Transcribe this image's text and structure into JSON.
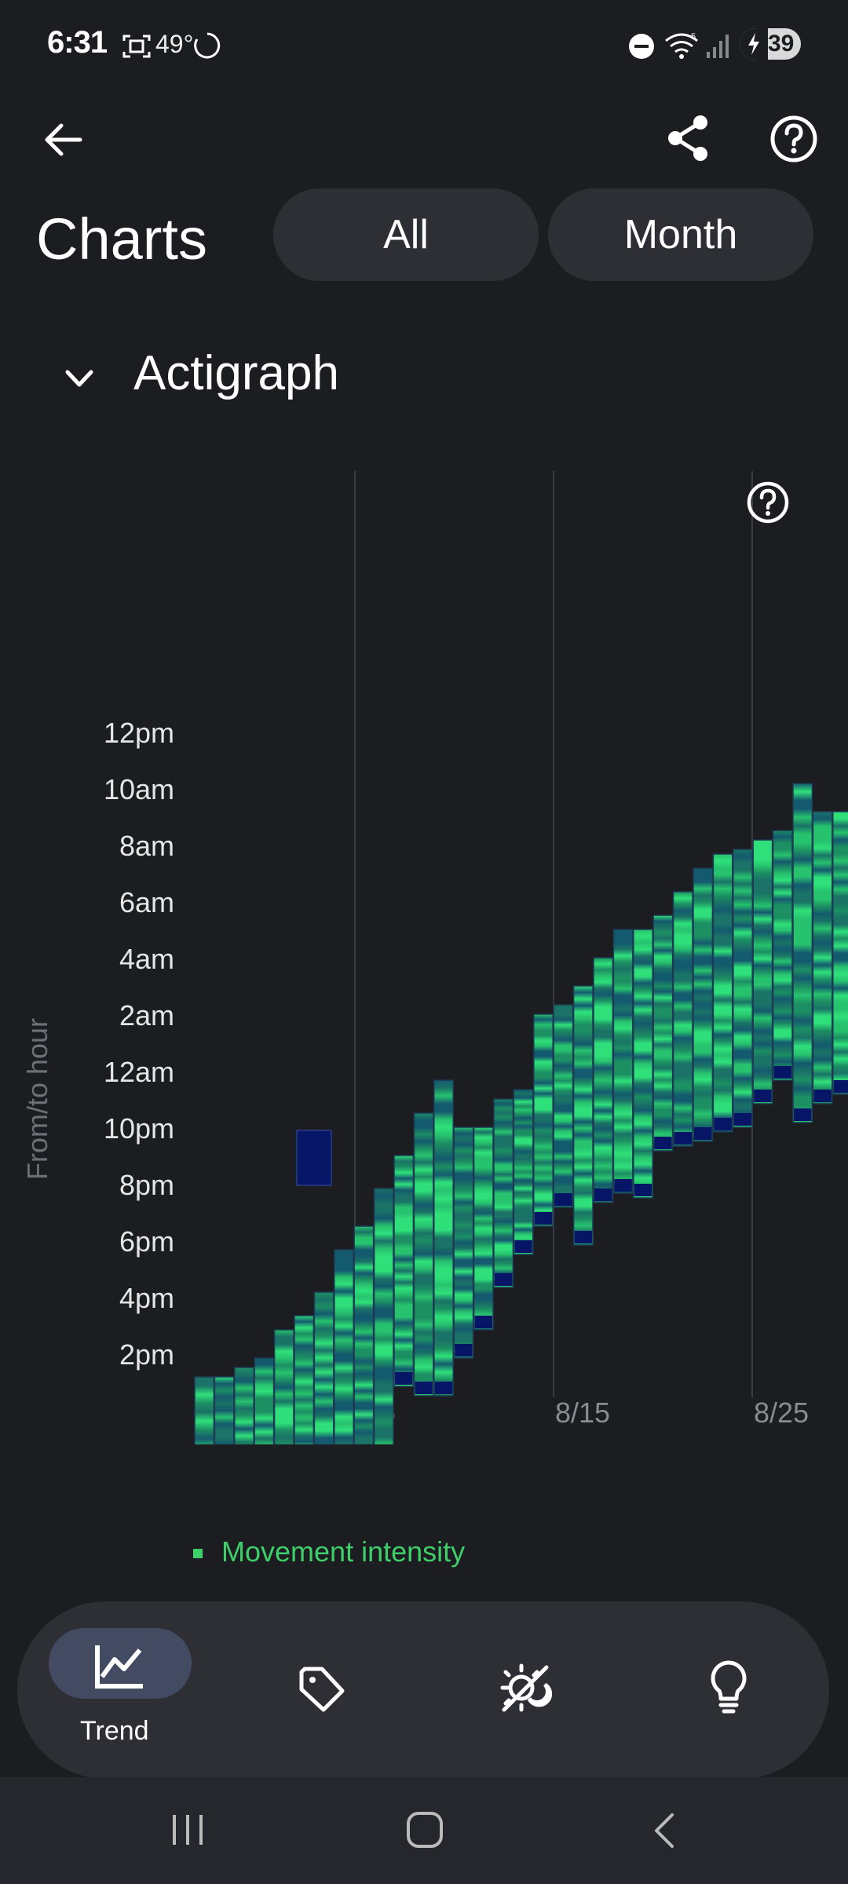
{
  "status_bar": {
    "time": "6:31",
    "temperature": "49°",
    "battery": "39",
    "icons": [
      "screenshot-icon",
      "loading-icon",
      "do-not-disturb-icon",
      "wifi-icon",
      "signal-icon",
      "battery-icon"
    ]
  },
  "header": {
    "title": "Charts",
    "range_buttons": [
      "All",
      "Month"
    ],
    "icons": [
      "back-arrow-icon",
      "share-icon",
      "help-icon"
    ]
  },
  "section": {
    "title": "Actigraph",
    "icon": "chevron-down-icon"
  },
  "chart_data": {
    "type": "heatmap",
    "title": "",
    "ylabel": "From/to hour",
    "yticks": [
      "12pm",
      "10am",
      "8am",
      "6am",
      "4am",
      "2am",
      "12am",
      "10pm",
      "8pm",
      "6pm",
      "4pm",
      "2pm"
    ],
    "xticks": [
      "8/5",
      "8/15",
      "8/25"
    ],
    "legend": [
      "Movement intensity"
    ],
    "colors": {
      "high": "#2fe07a",
      "mid": "#1c8f63",
      "low": "#145a6e",
      "none": "#071566",
      "grid": "#3a3c42"
    },
    "series": [
      {
        "name": "Movement intensity",
        "sessions": [
          {
            "x": 0,
            "from": "00:40",
            "to": "13:10"
          },
          {
            "x": 1,
            "from": "03:40",
            "to": "13:10"
          },
          {
            "x": 2,
            "from": "03:50",
            "to": "13:30"
          },
          {
            "x": 3,
            "from": "04:20",
            "to": "13:50"
          },
          {
            "x": 4,
            "from": "04:40",
            "to": "14:50"
          },
          {
            "x": 5,
            "from": "06:50",
            "to": "15:20"
          },
          {
            "x": 6,
            "from": "05:50",
            "to": "16:10"
          },
          {
            "x": 7,
            "from": "07:50",
            "to": "17:40"
          },
          {
            "x": 8,
            "from": "10:10",
            "to": "18:30"
          },
          {
            "x": 9,
            "from": "09:10",
            "to": "19:50"
          },
          {
            "x": 10,
            "from": "12:50",
            "to": "21:00"
          },
          {
            "x": 11,
            "from": "12:30",
            "to": "22:30"
          },
          {
            "x": 12,
            "from": "12:30",
            "to": "23:40"
          },
          {
            "x": 13,
            "from": "13:50",
            "to": "22:00"
          },
          {
            "x": 14,
            "from": "14:50",
            "to": "22:00"
          },
          {
            "x": 15,
            "from": "16:20",
            "to": "23:00"
          },
          {
            "x": 16,
            "from": "17:30",
            "to": "23:20"
          },
          {
            "x": 17,
            "from": "18:30",
            "to": "26:00"
          },
          {
            "x": 18,
            "from": "19:10",
            "to": "26:20"
          },
          {
            "x": 19,
            "from": "17:50",
            "to": "27:00"
          },
          {
            "x": 20,
            "from": "19:20",
            "to": "28:00"
          },
          {
            "x": 21,
            "from": "19:40",
            "to": "29:00"
          },
          {
            "x": 22,
            "from": "19:30",
            "to": "29:00"
          },
          {
            "x": 23,
            "from": "21:10",
            "to": "29:30"
          },
          {
            "x": 24,
            "from": "21:20",
            "to": "30:20"
          },
          {
            "x": 25,
            "from": "21:30",
            "to": "31:10"
          },
          {
            "x": 26,
            "from": "21:50",
            "to": "31:40"
          },
          {
            "x": 27,
            "from": "22:00",
            "to": "31:50"
          },
          {
            "x": 28,
            "from": "22:50",
            "to": "32:10"
          },
          {
            "x": 29,
            "from": "23:40",
            "to": "32:30"
          },
          {
            "x": 30,
            "from": "22:10",
            "to": "34:10"
          },
          {
            "x": 31,
            "from": "22:50",
            "to": "33:10"
          },
          {
            "x": 32,
            "from": "23:10",
            "to": "33:10"
          },
          {
            "x": 33,
            "from": "23:40",
            "to": "33:30"
          },
          {
            "x": 34,
            "from": "24:10",
            "to": "34:00"
          },
          {
            "x": 35,
            "from": "24:20",
            "to": "34:40"
          }
        ]
      },
      {
        "name": "no-data",
        "sessions": [
          {
            "x": 8,
            "from": "04:00",
            "to": "06:00"
          }
        ]
      }
    ]
  },
  "bottom_nav": {
    "items": [
      {
        "label": "Trend",
        "icon": "trend-chart-icon",
        "active": true
      },
      {
        "label": "",
        "icon": "tag-icon",
        "active": false
      },
      {
        "label": "",
        "icon": "sleep-settings-icon",
        "active": false
      },
      {
        "label": "",
        "icon": "lightbulb-icon",
        "active": false
      }
    ]
  },
  "system_nav": {
    "icons": [
      "recents-icon",
      "home-icon",
      "back-icon"
    ]
  }
}
